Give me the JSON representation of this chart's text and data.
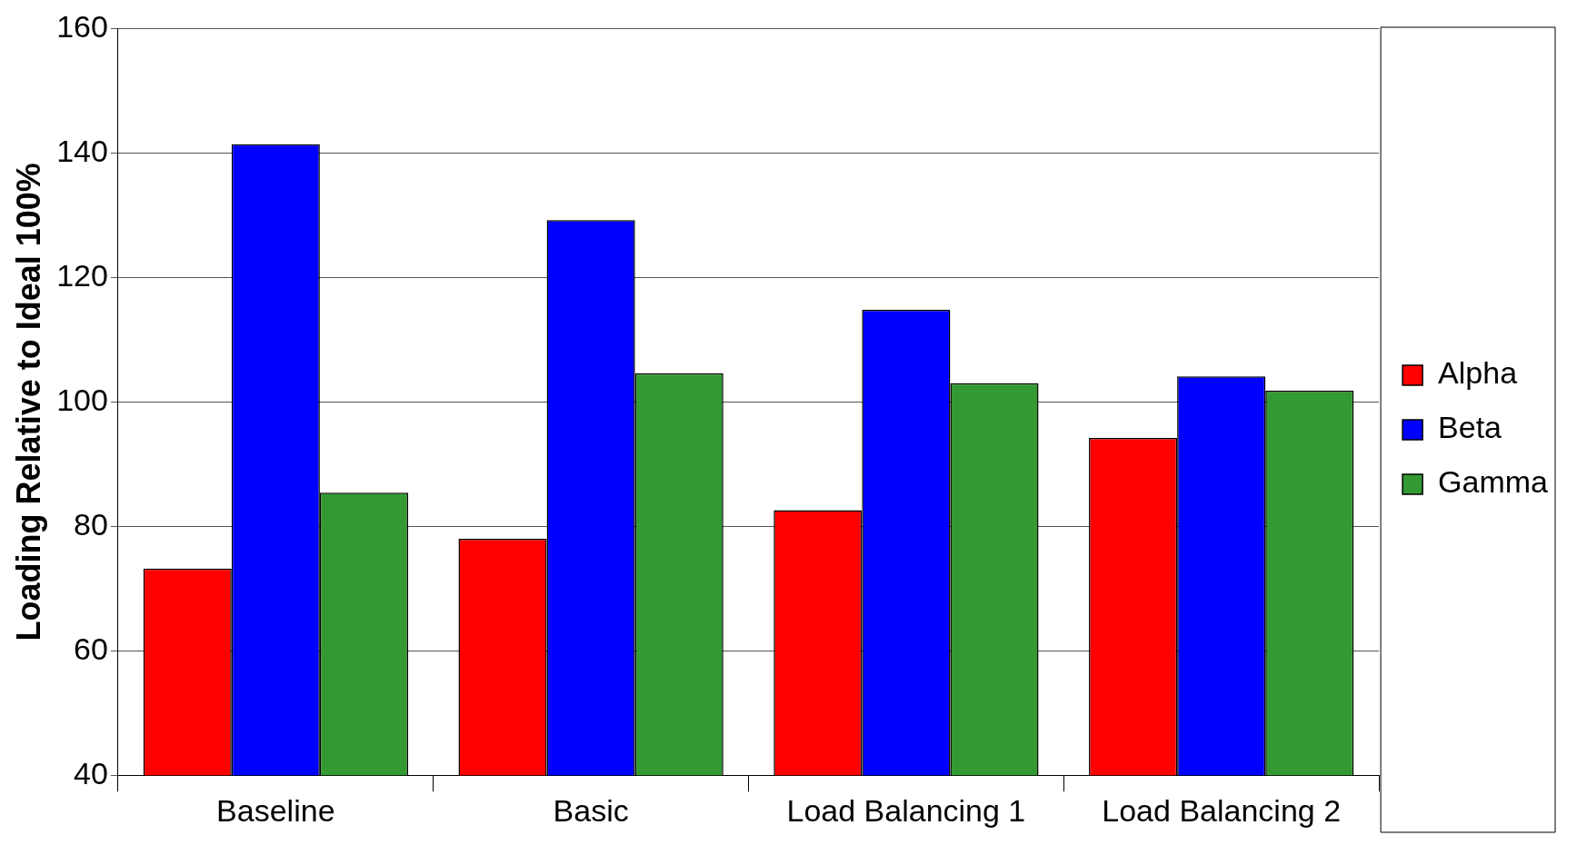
{
  "chart_data": {
    "type": "bar",
    "ylabel": "Loading Relative to Ideal 100%",
    "categories": [
      "Baseline",
      "Basic",
      "Load Balancing 1",
      "Load Balancing 2"
    ],
    "series": [
      {
        "name": "Alpha",
        "color": "#ff0000",
        "values": [
          73.2,
          78.0,
          82.6,
          94.2
        ]
      },
      {
        "name": "Beta",
        "color": "#0000ff",
        "values": [
          141.4,
          129.2,
          114.8,
          104.1
        ]
      },
      {
        "name": "Gamma",
        "color": "#339933",
        "values": [
          85.4,
          104.6,
          103.0,
          101.8
        ]
      }
    ],
    "ylim": [
      40,
      160
    ],
    "yticks": [
      40,
      60,
      80,
      100,
      120,
      140,
      160
    ],
    "grid": "y",
    "legend": "right"
  }
}
